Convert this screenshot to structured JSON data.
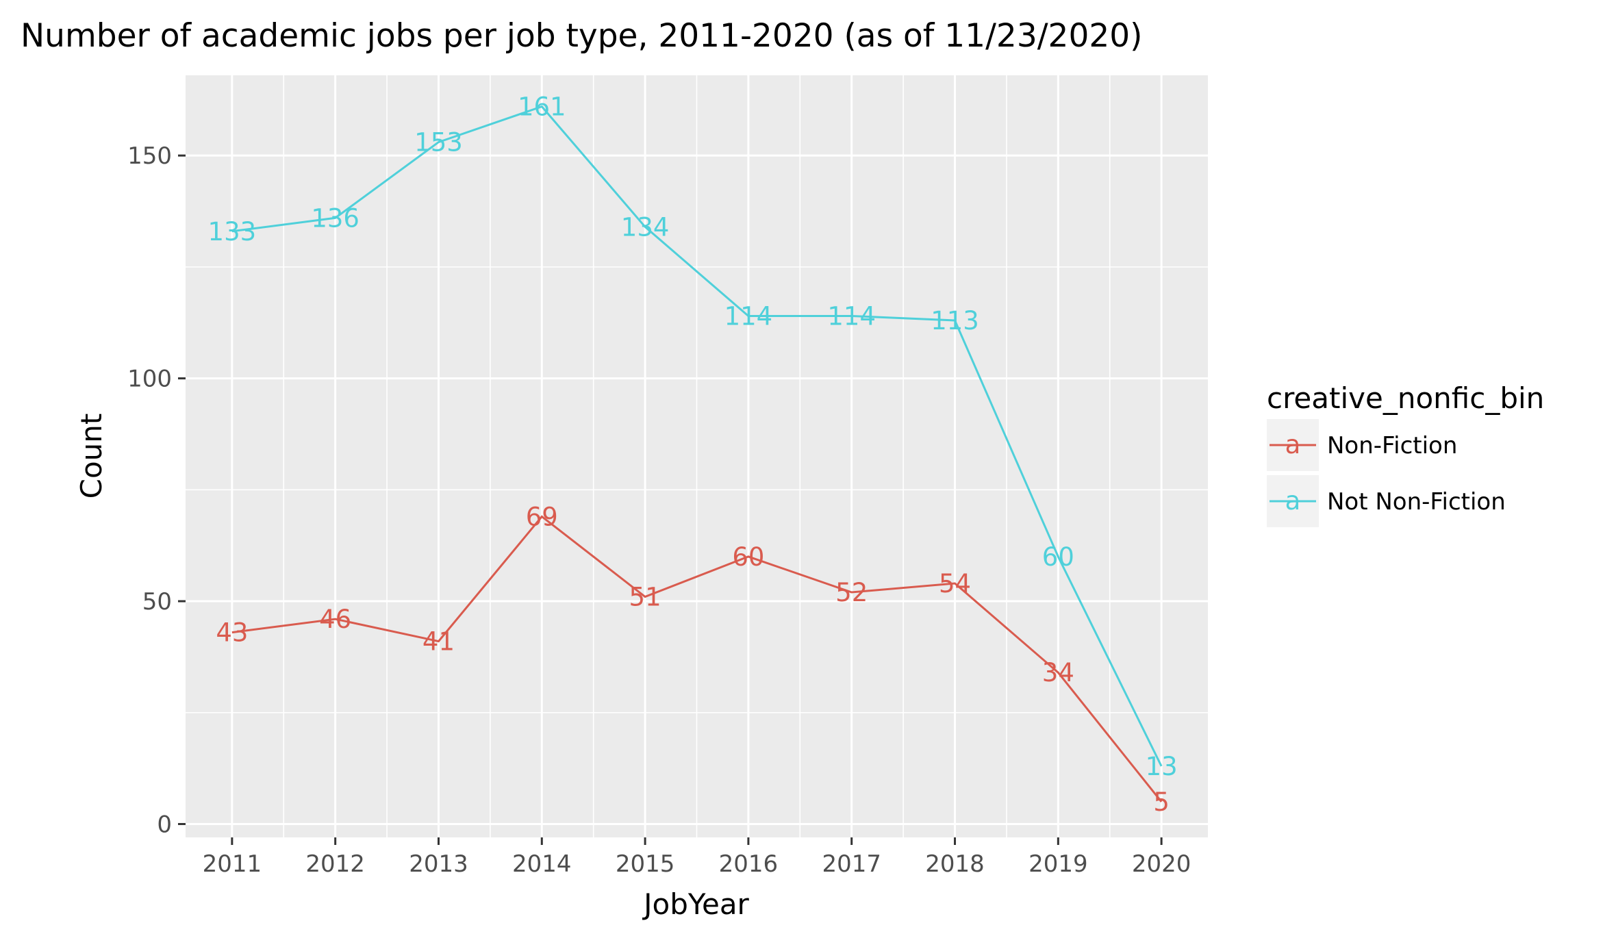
{
  "chart_data": {
    "type": "line",
    "title": "Number of academic jobs per job type, 2011-2020 (as of 11/23/2020)",
    "xlabel": "JobYear",
    "ylabel": "Count",
    "x": [
      2011,
      2012,
      2013,
      2014,
      2015,
      2016,
      2017,
      2018,
      2019,
      2020
    ],
    "x_tick_labels": [
      "2011",
      "2012",
      "2013",
      "2014",
      "2015",
      "2016",
      "2017",
      "2018",
      "2019",
      "2020"
    ],
    "y_ticks": [
      0,
      50,
      100,
      150
    ],
    "y_tick_labels": [
      "0",
      "50",
      "100",
      "150"
    ],
    "ylim": [
      -3,
      168
    ],
    "grid": true,
    "legend": {
      "title": "creative_nonfic_bin",
      "placement": "right",
      "key_glyph": "a"
    },
    "series": [
      {
        "name": "Non-Fiction",
        "color": "#d95b4e",
        "values": [
          43,
          46,
          41,
          69,
          51,
          60,
          52,
          54,
          34,
          5
        ],
        "labels": [
          "43",
          "46",
          "41",
          "69",
          "51",
          "60",
          "52",
          "54",
          "34",
          "5"
        ]
      },
      {
        "name": "Not Non-Fiction",
        "color": "#4fd0da",
        "values": [
          133,
          136,
          153,
          161,
          134,
          114,
          114,
          113,
          60,
          13
        ],
        "labels": [
          "133",
          "136",
          "153",
          "161",
          "134",
          "114",
          "114",
          "113",
          "60",
          "13"
        ]
      }
    ]
  }
}
